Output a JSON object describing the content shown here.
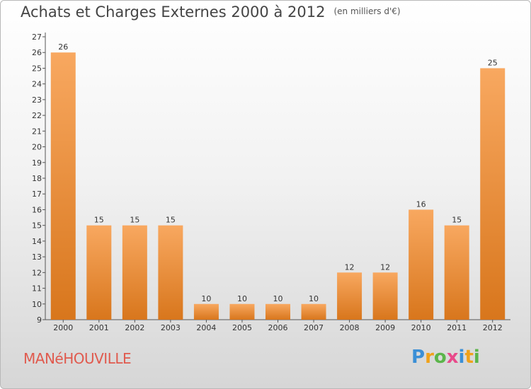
{
  "title": "Achats et Charges Externes 2000 à 2012",
  "subtitle": "(en milliers d'€)",
  "commune": "MANéHOUVILLE",
  "logo": {
    "letters": [
      "P",
      "r",
      "o",
      "x",
      "i",
      "t",
      "i"
    ],
    "colors": [
      "#3b8fd6",
      "#f0a21a",
      "#5bb54a",
      "#e84a8a",
      "#3b8fd6",
      "#f0a21a",
      "#5bb54a"
    ]
  },
  "colors": {
    "bar_light": "#f8a860",
    "bar_dark": "#d8761c",
    "accent": "#e05a4e"
  },
  "chart_data": {
    "type": "bar",
    "categories": [
      "2000",
      "2001",
      "2002",
      "2003",
      "2004",
      "2005",
      "2006",
      "2007",
      "2008",
      "2009",
      "2010",
      "2011",
      "2012"
    ],
    "values": [
      26,
      15,
      15,
      15,
      10,
      10,
      10,
      10,
      12,
      12,
      16,
      15,
      25
    ],
    "ylim": [
      9,
      27
    ],
    "yticks": [
      9,
      10,
      11,
      12,
      13,
      14,
      15,
      16,
      17,
      18,
      19,
      20,
      21,
      22,
      23,
      24,
      25,
      26,
      27
    ],
    "grid": false,
    "xlabel": "",
    "ylabel": ""
  }
}
